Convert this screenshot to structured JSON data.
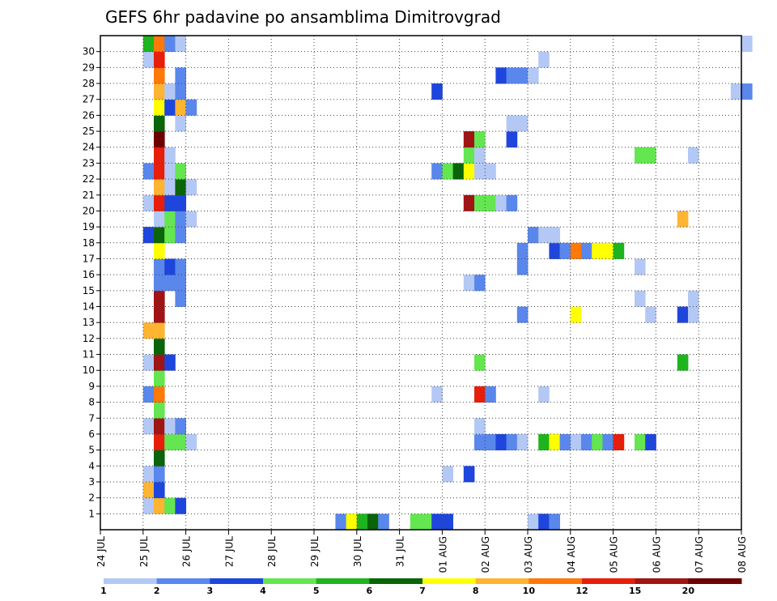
{
  "chart_data": {
    "type": "heatmap",
    "title": "GEFS 6hr padavine po ansamblima Dimitrovgrad",
    "xlabel": "",
    "ylabel": "",
    "x_ticks": [
      "24 JUL",
      "25 JUL",
      "26 JUL",
      "27 JUL",
      "28 JUL",
      "29 JUL",
      "30 JUL",
      "31 JUL",
      "01 AUG",
      "02 AUG",
      "03 AUG",
      "04 AUG",
      "05 AUG",
      "06 AUG",
      "07 AUG",
      "08 AUG"
    ],
    "y_ticks": [
      "1",
      "2",
      "3",
      "4",
      "5",
      "6",
      "7",
      "8",
      "9",
      "10",
      "11",
      "12",
      "13",
      "14",
      "15",
      "16",
      "17",
      "18",
      "19",
      "20",
      "21",
      "22",
      "23",
      "24",
      "25",
      "26",
      "27",
      "28",
      "29",
      "30"
    ],
    "x_steps_per_day": 4,
    "members": 31,
    "grid": true,
    "legend": {
      "position": "bottom",
      "labels": [
        "1",
        "2",
        "3",
        "4",
        "5",
        "6",
        "7",
        "8",
        "10",
        "12",
        "15",
        "20"
      ],
      "colors": [
        "#b4c8f5",
        "#5a87eb",
        "#1e46dc",
        "#64e650",
        "#1eb41e",
        "#0a640a",
        "#ffff00",
        "#ffb432",
        "#ff780a",
        "#e61e0a",
        "#a01414",
        "#6e0000"
      ]
    },
    "cells": [
      [
        0,
        22,
        1
      ],
      [
        0,
        23,
        6
      ],
      [
        0,
        24,
        4
      ],
      [
        0,
        25,
        5
      ],
      [
        0,
        26,
        1
      ],
      [
        0,
        29,
        3
      ],
      [
        0,
        30,
        3
      ],
      [
        0,
        31,
        2
      ],
      [
        0,
        32,
        2
      ],
      [
        0,
        40,
        0
      ],
      [
        0,
        41,
        2
      ],
      [
        0,
        42,
        1
      ],
      [
        1,
        4,
        0
      ],
      [
        1,
        5,
        7
      ],
      [
        1,
        6,
        3
      ],
      [
        1,
        7,
        2
      ],
      [
        2,
        4,
        7
      ],
      [
        2,
        5,
        2
      ],
      [
        3,
        4,
        0
      ],
      [
        3,
        5,
        1
      ],
      [
        3,
        32,
        0
      ],
      [
        3,
        34,
        2
      ],
      [
        4,
        5,
        5
      ],
      [
        5,
        5,
        9
      ],
      [
        5,
        6,
        3
      ],
      [
        5,
        7,
        3
      ],
      [
        5,
        8,
        0
      ],
      [
        5,
        35,
        1
      ],
      [
        5,
        36,
        1
      ],
      [
        5,
        37,
        2
      ],
      [
        5,
        38,
        1
      ],
      [
        5,
        39,
        0
      ],
      [
        5,
        41,
        4
      ],
      [
        5,
        42,
        6
      ],
      [
        5,
        43,
        1
      ],
      [
        5,
        44,
        0
      ],
      [
        5,
        45,
        1
      ],
      [
        5,
        46,
        3
      ],
      [
        5,
        47,
        1
      ],
      [
        5,
        48,
        9
      ],
      [
        5,
        50,
        3
      ],
      [
        5,
        51,
        2
      ],
      [
        6,
        4,
        0
      ],
      [
        6,
        5,
        10
      ],
      [
        6,
        6,
        0
      ],
      [
        6,
        7,
        1
      ],
      [
        6,
        35,
        0
      ],
      [
        7,
        5,
        3
      ],
      [
        8,
        4,
        1
      ],
      [
        8,
        5,
        8
      ],
      [
        8,
        31,
        0
      ],
      [
        8,
        35,
        9
      ],
      [
        8,
        36,
        1
      ],
      [
        8,
        41,
        0
      ],
      [
        9,
        5,
        3
      ],
      [
        10,
        4,
        0
      ],
      [
        10,
        5,
        10
      ],
      [
        10,
        6,
        2
      ],
      [
        10,
        35,
        3
      ],
      [
        10,
        54,
        4
      ],
      [
        11,
        5,
        5
      ],
      [
        12,
        4,
        7
      ],
      [
        12,
        5,
        7
      ],
      [
        13,
        5,
        10
      ],
      [
        13,
        39,
        1
      ],
      [
        13,
        44,
        6
      ],
      [
        13,
        51,
        0
      ],
      [
        13,
        54,
        2
      ],
      [
        13,
        55,
        0
      ],
      [
        14,
        5,
        10
      ],
      [
        14,
        7,
        1
      ],
      [
        14,
        50,
        0
      ],
      [
        14,
        55,
        0
      ],
      [
        15,
        5,
        1
      ],
      [
        15,
        6,
        1
      ],
      [
        15,
        7,
        1
      ],
      [
        15,
        34,
        0
      ],
      [
        15,
        35,
        1
      ],
      [
        16,
        5,
        1
      ],
      [
        16,
        6,
        2
      ],
      [
        16,
        7,
        1
      ],
      [
        16,
        39,
        1
      ],
      [
        16,
        50,
        0
      ],
      [
        17,
        5,
        6
      ],
      [
        17,
        39,
        1
      ],
      [
        17,
        42,
        2
      ],
      [
        17,
        43,
        1
      ],
      [
        17,
        44,
        8
      ],
      [
        17,
        45,
        1
      ],
      [
        17,
        46,
        6
      ],
      [
        17,
        47,
        6
      ],
      [
        17,
        48,
        4
      ],
      [
        18,
        4,
        2
      ],
      [
        18,
        5,
        5
      ],
      [
        18,
        6,
        3
      ],
      [
        18,
        7,
        1
      ],
      [
        18,
        40,
        1
      ],
      [
        18,
        41,
        0
      ],
      [
        18,
        42,
        0
      ],
      [
        19,
        5,
        0
      ],
      [
        19,
        6,
        3
      ],
      [
        19,
        7,
        1
      ],
      [
        19,
        8,
        0
      ],
      [
        19,
        54,
        7
      ],
      [
        20,
        4,
        0
      ],
      [
        20,
        5,
        9
      ],
      [
        20,
        6,
        2
      ],
      [
        20,
        7,
        2
      ],
      [
        20,
        34,
        10
      ],
      [
        20,
        35,
        3
      ],
      [
        20,
        36,
        3
      ],
      [
        20,
        37,
        0
      ],
      [
        20,
        38,
        1
      ],
      [
        21,
        5,
        7
      ],
      [
        21,
        6,
        0
      ],
      [
        21,
        7,
        5
      ],
      [
        21,
        8,
        0
      ],
      [
        22,
        4,
        1
      ],
      [
        22,
        5,
        9
      ],
      [
        22,
        6,
        0
      ],
      [
        22,
        7,
        3
      ],
      [
        22,
        31,
        1
      ],
      [
        22,
        32,
        3
      ],
      [
        22,
        33,
        5
      ],
      [
        22,
        34,
        6
      ],
      [
        22,
        35,
        0
      ],
      [
        22,
        36,
        0
      ],
      [
        23,
        5,
        9
      ],
      [
        23,
        6,
        0
      ],
      [
        23,
        34,
        3
      ],
      [
        23,
        35,
        0
      ],
      [
        23,
        50,
        3
      ],
      [
        23,
        51,
        3
      ],
      [
        23,
        55,
        0
      ],
      [
        24,
        5,
        11
      ],
      [
        24,
        34,
        10
      ],
      [
        24,
        35,
        3
      ],
      [
        24,
        38,
        2
      ],
      [
        25,
        5,
        5
      ],
      [
        25,
        7,
        0
      ],
      [
        25,
        38,
        0
      ],
      [
        25,
        39,
        0
      ],
      [
        26,
        5,
        6
      ],
      [
        26,
        6,
        2
      ],
      [
        26,
        7,
        7
      ],
      [
        26,
        8,
        1
      ],
      [
        27,
        5,
        7
      ],
      [
        27,
        6,
        0
      ],
      [
        27,
        7,
        1
      ],
      [
        27,
        31,
        2
      ],
      [
        27,
        59,
        0
      ],
      [
        27,
        60,
        1
      ],
      [
        28,
        5,
        8
      ],
      [
        28,
        7,
        1
      ],
      [
        28,
        37,
        2
      ],
      [
        28,
        38,
        1
      ],
      [
        28,
        39,
        1
      ],
      [
        28,
        40,
        0
      ],
      [
        29,
        4,
        0
      ],
      [
        29,
        5,
        9
      ],
      [
        29,
        41,
        0
      ],
      [
        30,
        4,
        4
      ],
      [
        30,
        5,
        8
      ],
      [
        30,
        6,
        1
      ],
      [
        30,
        7,
        0
      ],
      [
        30,
        60,
        0
      ]
    ]
  }
}
